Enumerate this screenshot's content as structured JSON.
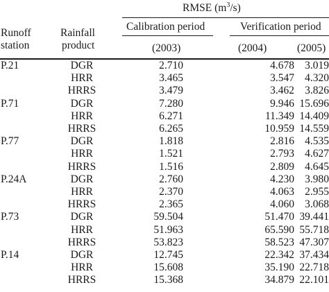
{
  "header": {
    "rmse_label": "RMSE (m",
    "rmse_sup": "3",
    "rmse_suffix": "/s)",
    "runoff_line1": "Runoff",
    "runoff_line2": "station",
    "rainfall_line1": "Rainfall",
    "rainfall_line2": "product",
    "calibration": "Calibration period",
    "verification": "Verification period",
    "year_2003": "(2003)",
    "year_2004": "(2004)",
    "year_2005": "(2005)"
  },
  "rows": [
    {
      "station": "P.21",
      "product": "DGR",
      "v2003": "2.710",
      "v2004": "4.678",
      "v2005": "3.019"
    },
    {
      "station": "",
      "product": "HRR",
      "v2003": "3.465",
      "v2004": "3.547",
      "v2005": "4.320"
    },
    {
      "station": "",
      "product": "HRRS",
      "v2003": "3.479",
      "v2004": "3.462",
      "v2005": "3.826"
    },
    {
      "station": "P.71",
      "product": "DGR",
      "v2003": "7.280",
      "v2004": "9.946",
      "v2005": "15.696"
    },
    {
      "station": "",
      "product": "HRR",
      "v2003": "6.271",
      "v2004": "11.349",
      "v2005": "14.409"
    },
    {
      "station": "",
      "product": "HRRS",
      "v2003": "6.265",
      "v2004": "10.959",
      "v2005": "14.559"
    },
    {
      "station": "P.77",
      "product": "DGR",
      "v2003": "1.818",
      "v2004": "2.816",
      "v2005": "4.535"
    },
    {
      "station": "",
      "product": "HRR",
      "v2003": "1.521",
      "v2004": "2.793",
      "v2005": "4.627"
    },
    {
      "station": "",
      "product": "HRRS",
      "v2003": "1.516",
      "v2004": "2.809",
      "v2005": "4.645"
    },
    {
      "station": "P.24A",
      "product": "DGR",
      "v2003": "2.760",
      "v2004": "4.230",
      "v2005": "3.980"
    },
    {
      "station": "",
      "product": "HRR",
      "v2003": "2.370",
      "v2004": "4.063",
      "v2005": "2.955"
    },
    {
      "station": "",
      "product": "HRRS",
      "v2003": "2.365",
      "v2004": "4.060",
      "v2005": "3.068"
    },
    {
      "station": "P.73",
      "product": "DGR",
      "v2003": "59.504",
      "v2004": "51.470",
      "v2005": "39.441"
    },
    {
      "station": "",
      "product": "HRR",
      "v2003": "51.963",
      "v2004": "65.590",
      "v2005": "55.718"
    },
    {
      "station": "",
      "product": "HRRS",
      "v2003": "53.823",
      "v2004": "58.523",
      "v2005": "47.307"
    },
    {
      "station": "P.14",
      "product": "DGR",
      "v2003": "12.745",
      "v2004": "22.342",
      "v2005": "37.434"
    },
    {
      "station": "",
      "product": "HRR",
      "v2003": "15.608",
      "v2004": "35.190",
      "v2005": "22.718"
    },
    {
      "station": "",
      "product": "HRRS",
      "v2003": "15.368",
      "v2004": "34.879",
      "v2005": "22.101"
    }
  ]
}
